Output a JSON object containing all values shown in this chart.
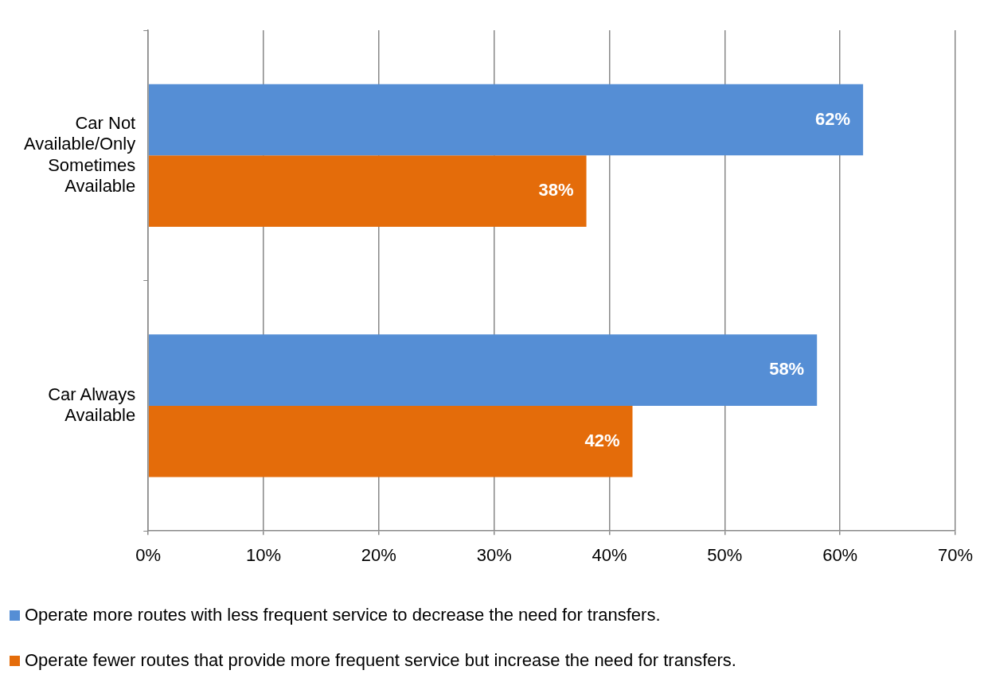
{
  "chart_data": {
    "type": "bar",
    "orientation": "horizontal",
    "categories": [
      "Car Not Available/Only Sometimes Available",
      "Car Always Available"
    ],
    "series": [
      {
        "name": "Operate more routes with less frequent service to decrease the need for transfers.",
        "color": "#558ed5",
        "values": [
          62,
          58
        ],
        "value_labels": [
          "62%",
          "58%"
        ]
      },
      {
        "name": "Operate fewer routes that provide more frequent service but increase the need for transfers.",
        "color": "#e46c0a",
        "values": [
          38,
          42
        ],
        "value_labels": [
          "38%",
          "42%"
        ]
      }
    ],
    "xlim": [
      0,
      70
    ],
    "xticks": [
      {
        "value": 0,
        "label": "0%"
      },
      {
        "value": 10,
        "label": "10%"
      },
      {
        "value": 20,
        "label": "20%"
      },
      {
        "value": 30,
        "label": "30%"
      },
      {
        "value": 40,
        "label": "40%"
      },
      {
        "value": 50,
        "label": "50%"
      },
      {
        "value": 60,
        "label": "60%"
      },
      {
        "value": 70,
        "label": "70%"
      }
    ],
    "grid": "x",
    "legend": "bottom"
  }
}
